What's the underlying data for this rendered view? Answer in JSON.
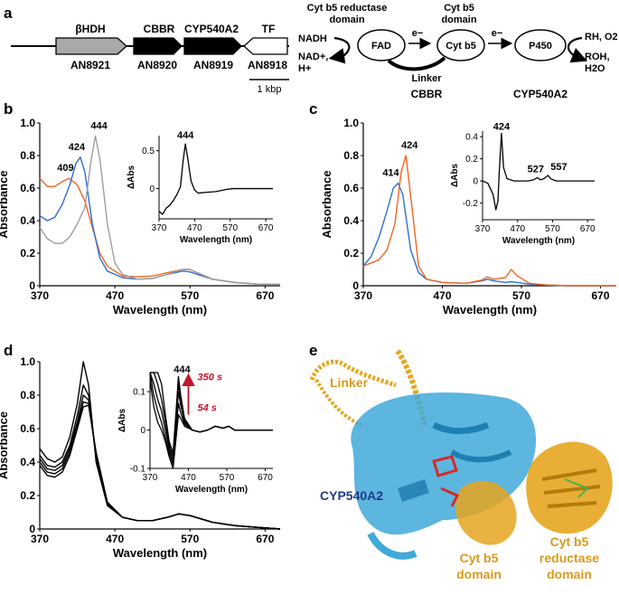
{
  "panels": {
    "a": "a",
    "b": "b",
    "c": "c",
    "d": "d",
    "e": "e"
  },
  "gene_cluster": {
    "genes": [
      {
        "name": "βHDH",
        "id": "AN8921",
        "fill": "#a9a9a9"
      },
      {
        "name": "CBBR",
        "id": "AN8920",
        "fill": "#000000"
      },
      {
        "name": "CYP540A2",
        "id": "AN8919",
        "fill": "#000000"
      },
      {
        "name": "TF",
        "id": "AN8918",
        "fill": "#ffffff"
      }
    ],
    "scale_bar": "1 kbp"
  },
  "scheme": {
    "reductase_domain_label_1": "Cyt b5 reductase",
    "reductase_domain_label_2": "domain",
    "cytb5_domain_label_1": "Cyt b5",
    "cytb5_domain_label_2": "domain",
    "nadh": "NADH",
    "nadp_1": "NAD+,",
    "nadp_2": "H+",
    "fad": "FAD",
    "electron_1": "e−",
    "cytb5": "Cyt b5",
    "linker": "Linker",
    "electron_2": "e−",
    "p450": "P450",
    "substrate": "RH, O2",
    "product_1": "ROH,",
    "product_2": "H2O",
    "cbbr": "CBBR",
    "cyp540a2": "CYP540A2"
  },
  "chart_data": [
    {
      "panel": "b",
      "type": "line",
      "xlabel": "Wavelength (nm)",
      "ylabel": "Absorbance",
      "xlim": [
        370,
        690
      ],
      "ylim": [
        0,
        1.0
      ],
      "xticks": [
        370,
        470,
        570,
        670
      ],
      "yticks": [
        0,
        0.2,
        0.4,
        0.6,
        0.8,
        1.0
      ],
      "annotations": [
        "409",
        "424",
        "444"
      ],
      "series": [
        {
          "color": "#f26522",
          "x": [
            370,
            380,
            390,
            400,
            409,
            420,
            430,
            440,
            450,
            460,
            480,
            500,
            520,
            540,
            560,
            570,
            580,
            600,
            630,
            660,
            690
          ],
          "y": [
            0.66,
            0.61,
            0.61,
            0.64,
            0.66,
            0.62,
            0.52,
            0.36,
            0.2,
            0.12,
            0.06,
            0.055,
            0.06,
            0.08,
            0.1,
            0.1,
            0.08,
            0.04,
            0.02,
            0.01,
            0.01
          ]
        },
        {
          "color": "#2e6fd1",
          "x": [
            370,
            380,
            390,
            400,
            410,
            418,
            424,
            430,
            440,
            450,
            460,
            480,
            500,
            520,
            540,
            560,
            570,
            580,
            600,
            630,
            660,
            690
          ],
          "y": [
            0.43,
            0.4,
            0.42,
            0.5,
            0.62,
            0.75,
            0.79,
            0.7,
            0.38,
            0.17,
            0.09,
            0.05,
            0.04,
            0.045,
            0.07,
            0.09,
            0.085,
            0.07,
            0.04,
            0.02,
            0.01,
            0.01
          ]
        },
        {
          "color": "#9e9e9e",
          "x": [
            370,
            380,
            390,
            400,
            410,
            420,
            430,
            438,
            444,
            450,
            460,
            470,
            480,
            500,
            520,
            540,
            560,
            570,
            580,
            600,
            630,
            660,
            690
          ],
          "y": [
            0.36,
            0.29,
            0.26,
            0.26,
            0.3,
            0.38,
            0.48,
            0.76,
            0.92,
            0.78,
            0.38,
            0.14,
            0.07,
            0.04,
            0.045,
            0.07,
            0.1,
            0.1,
            0.08,
            0.04,
            0.02,
            0.01,
            0.01
          ]
        }
      ]
    },
    {
      "panel": "b-inset",
      "type": "line",
      "xlabel": "Wavelength (nm)",
      "ylabel": "ΔAbs",
      "xlim": [
        370,
        690
      ],
      "ylim": [
        -0.4,
        0.7
      ],
      "xticks": [
        370,
        470,
        570,
        670
      ],
      "yticks": [
        -0.5,
        0,
        0.5
      ],
      "annotations": [
        "444"
      ],
      "series": [
        {
          "color": "#000000",
          "x": [
            370,
            380,
            390,
            400,
            410,
            420,
            430,
            438,
            444,
            450,
            460,
            470,
            480,
            500,
            530,
            560,
            580,
            600,
            630,
            660,
            690
          ],
          "y": [
            -0.3,
            -0.34,
            -0.26,
            -0.22,
            -0.16,
            -0.08,
            0.02,
            0.38,
            0.59,
            0.42,
            0.1,
            -0.02,
            -0.06,
            -0.05,
            -0.04,
            -0.01,
            0.0,
            0.0,
            0.0,
            0.0,
            0.0
          ]
        }
      ]
    },
    {
      "panel": "c",
      "type": "line",
      "xlabel": "Wavelength (nm)",
      "ylabel": "Absorbance",
      "xlim": [
        370,
        690
      ],
      "ylim": [
        0,
        1.0
      ],
      "xticks": [
        370,
        470,
        570,
        670
      ],
      "yticks": [
        0,
        0.2,
        0.4,
        0.6,
        0.8,
        1.0
      ],
      "annotations": [
        "414",
        "424"
      ],
      "series": [
        {
          "color": "#2e6fd1",
          "x": [
            370,
            380,
            390,
            400,
            408,
            414,
            420,
            430,
            440,
            450,
            470,
            500,
            520,
            527,
            535,
            550,
            557,
            565,
            580,
            600,
            630,
            660,
            690
          ],
          "y": [
            0.12,
            0.18,
            0.3,
            0.46,
            0.6,
            0.63,
            0.56,
            0.22,
            0.08,
            0.04,
            0.02,
            0.015,
            0.03,
            0.04,
            0.03,
            0.02,
            0.025,
            0.02,
            0.01,
            0.005,
            0.0,
            0.0,
            0.0
          ]
        },
        {
          "color": "#f26522",
          "x": [
            370,
            380,
            390,
            400,
            410,
            418,
            424,
            430,
            440,
            450,
            470,
            500,
            520,
            527,
            535,
            550,
            557,
            565,
            580,
            600,
            630,
            660,
            690
          ],
          "y": [
            0.12,
            0.14,
            0.16,
            0.22,
            0.38,
            0.7,
            0.8,
            0.55,
            0.12,
            0.04,
            0.02,
            0.015,
            0.035,
            0.055,
            0.04,
            0.05,
            0.1,
            0.06,
            0.015,
            0.005,
            0.0,
            0.0,
            0.0
          ]
        }
      ]
    },
    {
      "panel": "c-inset",
      "type": "line",
      "xlabel": "Wavelength (nm)",
      "ylabel": "ΔAbs",
      "xlim": [
        370,
        690
      ],
      "ylim": [
        -0.35,
        0.45
      ],
      "xticks": [
        370,
        470,
        570,
        670
      ],
      "yticks": [
        -0.2,
        0,
        0.2,
        0.4
      ],
      "annotations": [
        "424",
        "527",
        "557"
      ],
      "series": [
        {
          "color": "#000000",
          "x": [
            370,
            385,
            400,
            408,
            414,
            418,
            424,
            430,
            440,
            460,
            480,
            500,
            515,
            527,
            535,
            545,
            557,
            565,
            580,
            600,
            630,
            660,
            690
          ],
          "y": [
            0.0,
            -0.02,
            -0.12,
            -0.26,
            -0.18,
            0.1,
            0.43,
            0.12,
            0.02,
            0.0,
            0.0,
            0.0,
            0.01,
            0.03,
            0.01,
            0.02,
            0.05,
            0.02,
            0.0,
            0.0,
            0.0,
            0.0,
            0.0
          ]
        }
      ]
    },
    {
      "panel": "d",
      "type": "line",
      "xlabel": "Wavelength (nm)",
      "ylabel": "Absorbance",
      "xlim": [
        370,
        690
      ],
      "ylim": [
        0,
        1.0
      ],
      "xticks": [
        370,
        470,
        570,
        670
      ],
      "yticks": [
        0,
        0.2,
        0.4,
        0.6,
        0.8,
        1.0
      ],
      "series": [
        {
          "color": "#000000",
          "x": [
            370,
            380,
            390,
            400,
            410,
            420,
            428,
            435,
            445,
            460,
            480,
            500,
            520,
            540,
            555,
            570,
            600,
            630,
            660,
            690
          ],
          "y": [
            0.48,
            0.42,
            0.4,
            0.43,
            0.55,
            0.75,
            1.0,
            0.86,
            0.4,
            0.14,
            0.07,
            0.05,
            0.05,
            0.07,
            0.09,
            0.08,
            0.04,
            0.02,
            0.01,
            0.0
          ]
        },
        {
          "color": "#000000",
          "x": [
            370,
            380,
            390,
            400,
            410,
            420,
            428,
            435,
            445,
            460,
            480,
            500,
            520,
            540,
            555,
            570,
            600,
            630,
            660,
            690
          ],
          "y": [
            0.44,
            0.38,
            0.37,
            0.4,
            0.5,
            0.68,
            0.86,
            0.8,
            0.42,
            0.15,
            0.07,
            0.05,
            0.05,
            0.07,
            0.09,
            0.08,
            0.04,
            0.02,
            0.01,
            0.0
          ]
        },
        {
          "color": "#000000",
          "x": [
            370,
            380,
            390,
            400,
            410,
            420,
            428,
            435,
            445,
            460,
            480,
            500,
            520,
            540,
            555,
            570,
            600,
            630,
            660,
            690
          ],
          "y": [
            0.42,
            0.36,
            0.35,
            0.38,
            0.48,
            0.64,
            0.8,
            0.77,
            0.44,
            0.15,
            0.07,
            0.05,
            0.05,
            0.07,
            0.09,
            0.08,
            0.04,
            0.02,
            0.01,
            0.0
          ]
        },
        {
          "color": "#000000",
          "x": [
            370,
            380,
            390,
            400,
            410,
            420,
            428,
            435,
            445,
            460,
            480,
            500,
            520,
            540,
            555,
            570,
            600,
            630,
            660,
            690
          ],
          "y": [
            0.4,
            0.34,
            0.33,
            0.36,
            0.46,
            0.62,
            0.76,
            0.75,
            0.45,
            0.16,
            0.07,
            0.05,
            0.05,
            0.07,
            0.09,
            0.08,
            0.04,
            0.02,
            0.01,
            0.0
          ]
        },
        {
          "color": "#000000",
          "x": [
            370,
            380,
            390,
            400,
            410,
            420,
            428,
            435,
            445,
            460,
            480,
            500,
            520,
            540,
            555,
            570,
            600,
            630,
            660,
            690
          ],
          "y": [
            0.38,
            0.32,
            0.31,
            0.34,
            0.44,
            0.6,
            0.73,
            0.74,
            0.46,
            0.16,
            0.07,
            0.05,
            0.05,
            0.07,
            0.09,
            0.08,
            0.04,
            0.02,
            0.01,
            0.0
          ]
        }
      ]
    },
    {
      "panel": "d-inset",
      "type": "line",
      "xlabel": "Wavelength (nm)",
      "ylabel": "ΔAbs",
      "xlim": [
        370,
        690
      ],
      "ylim": [
        -0.1,
        0.15
      ],
      "xticks": [
        370,
        470,
        570,
        670
      ],
      "yticks": [
        -0.1,
        0,
        0.1
      ],
      "annotations": [
        "444",
        "350 s",
        "54 s"
      ],
      "series": [
        {
          "color": "#000000",
          "x": [
            370,
            380,
            390,
            400,
            410,
            420,
            430,
            438,
            444,
            450,
            460,
            480,
            500,
            520,
            540,
            560,
            575,
            590,
            620,
            650,
            690
          ],
          "y": [
            0.15,
            0.15,
            0.15,
            0.12,
            0.04,
            -0.03,
            -0.06,
            0.05,
            0.14,
            0.09,
            0.03,
            0.0,
            -0.005,
            0.0,
            0.01,
            0.005,
            0.01,
            0.0,
            0.0,
            0.0,
            0.0
          ]
        },
        {
          "color": "#000000",
          "x": [
            370,
            380,
            390,
            400,
            410,
            420,
            430,
            438,
            444,
            450,
            460,
            480,
            500,
            520,
            540,
            560,
            575,
            590,
            620,
            650,
            690
          ],
          "y": [
            0.15,
            0.15,
            0.12,
            0.08,
            0.02,
            -0.04,
            -0.07,
            0.04,
            0.12,
            0.08,
            0.025,
            0.0,
            -0.005,
            0.0,
            0.01,
            0.005,
            0.01,
            0.0,
            0.0,
            0.0,
            0.0
          ]
        },
        {
          "color": "#000000",
          "x": [
            370,
            380,
            390,
            400,
            410,
            420,
            430,
            438,
            444,
            450,
            460,
            480,
            500,
            520,
            540,
            560,
            575,
            590,
            620,
            650,
            690
          ],
          "y": [
            0.15,
            0.12,
            0.08,
            0.05,
            0.0,
            -0.05,
            -0.08,
            0.02,
            0.1,
            0.065,
            0.02,
            0.0,
            -0.005,
            0.0,
            0.01,
            0.005,
            0.01,
            0.0,
            0.0,
            0.0,
            0.0
          ]
        },
        {
          "color": "#000000",
          "x": [
            370,
            380,
            390,
            400,
            410,
            420,
            430,
            438,
            444,
            450,
            460,
            480,
            500,
            520,
            540,
            560,
            575,
            590,
            620,
            650,
            690
          ],
          "y": [
            0.15,
            0.09,
            0.05,
            0.02,
            -0.02,
            -0.06,
            -0.09,
            0.0,
            0.07,
            0.045,
            0.015,
            0.0,
            -0.005,
            0.0,
            0.01,
            0.005,
            0.01,
            0.0,
            0.0,
            0.0,
            0.0
          ]
        },
        {
          "color": "#000000",
          "x": [
            370,
            380,
            390,
            400,
            410,
            420,
            430,
            438,
            444,
            450,
            460,
            480,
            500,
            520,
            540,
            560,
            575,
            590,
            620,
            650,
            690
          ],
          "y": [
            0.13,
            0.06,
            0.02,
            0.0,
            -0.03,
            -0.07,
            -0.1,
            -0.02,
            0.04,
            0.03,
            0.01,
            0.0,
            -0.005,
            0.0,
            0.01,
            0.005,
            0.01,
            0.0,
            0.0,
            0.0,
            0.0
          ]
        }
      ]
    }
  ],
  "structure": {
    "linker": "Linker",
    "cyp540a2": "CYP540A2",
    "cytb5_domain_1": "Cyt b5",
    "cytb5_domain_2": "domain",
    "reductase_1": "Cyt b5",
    "reductase_2": "reductase",
    "reductase_3": "domain",
    "colors": {
      "cyp": "#3fa9d9",
      "cbbr": "#e0a020",
      "heme": "#d42a2a",
      "linker_text": "#d99a1c",
      "cyp_text": "#1f3a8a"
    }
  }
}
